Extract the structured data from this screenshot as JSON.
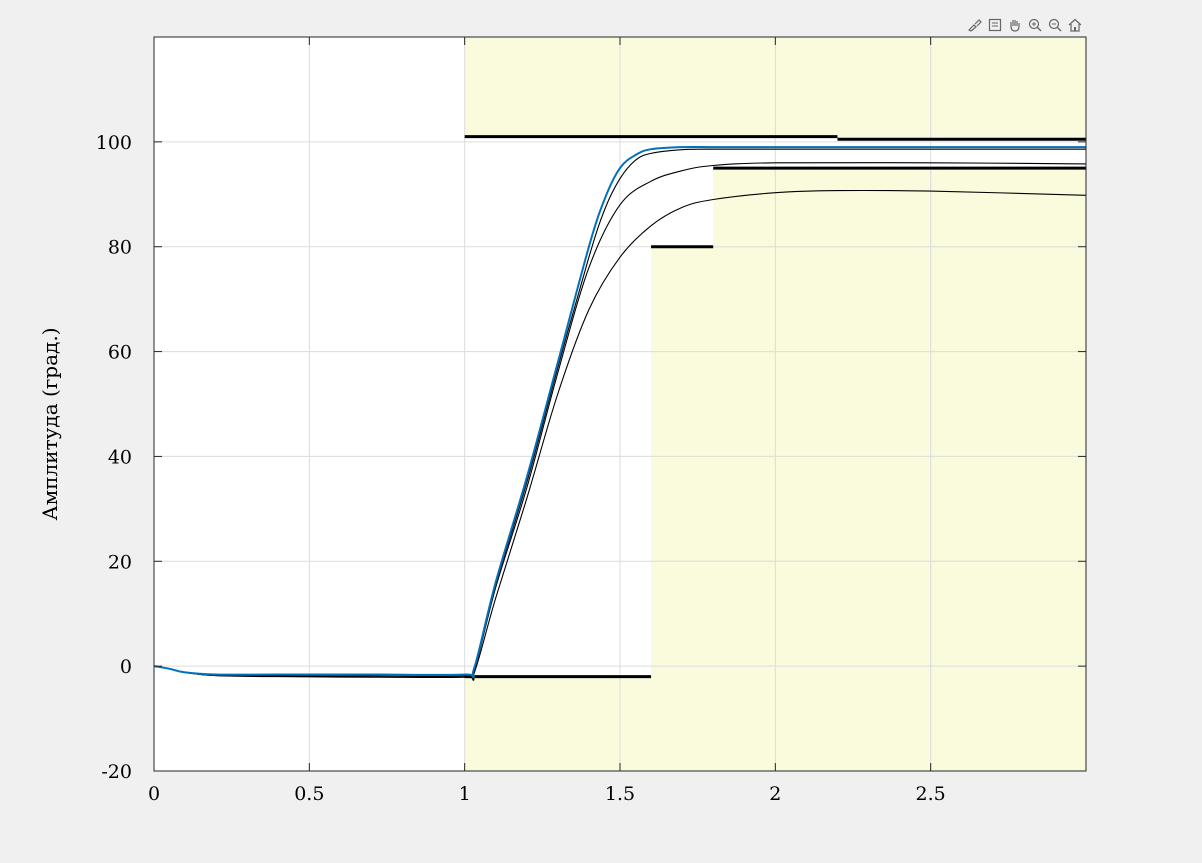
{
  "toolbar": {
    "icons": [
      "brush-icon",
      "legend-icon",
      "pan-icon",
      "zoom-in-icon",
      "zoom-out-icon",
      "home-icon"
    ]
  },
  "colors": {
    "background": "#f0f0f0",
    "axes_bg": "#ffffff",
    "bound_region": "#fafadc",
    "grid": "#dcdcdc",
    "bound_line": "#000000",
    "blue_series": "#0072bd",
    "black_series": "#000000"
  },
  "chart_data": {
    "type": "line",
    "title": "",
    "xlabel": "",
    "ylabel": "Амплитуда (град.)",
    "xlim": [
      0,
      3
    ],
    "ylim": [
      -20,
      120
    ],
    "xticks": [
      0,
      0.5,
      1,
      1.5,
      2,
      2.5
    ],
    "xtick_labels": [
      "0",
      "0.5",
      "1",
      "1.5",
      "2",
      "2.5"
    ],
    "yticks": [
      -20,
      0,
      20,
      40,
      60,
      80,
      100
    ],
    "ytick_labels": [
      "-20",
      "0",
      "20",
      "40",
      "60",
      "80",
      "100"
    ],
    "grid": true,
    "step_bounds": {
      "upper": [
        {
          "x": [
            1,
            2.2
          ],
          "y": 101
        },
        {
          "x": [
            2.2,
            3
          ],
          "y": 100.5
        }
      ],
      "lower": [
        {
          "x": [
            1,
            1.6
          ],
          "y": -2
        },
        {
          "x": [
            1.6,
            1.8
          ],
          "y": 80
        },
        {
          "x": [
            1.8,
            3
          ],
          "y": 95
        }
      ]
    },
    "series": [
      {
        "color": "#0072bd",
        "x": [
          0,
          0.05,
          0.1,
          0.2,
          0.4,
          0.7,
          1.0,
          1.03,
          1.1,
          1.2,
          1.3,
          1.4,
          1.45,
          1.5,
          1.55,
          1.6,
          1.7,
          1.8,
          2.0,
          2.5,
          3.0
        ],
        "y": [
          0,
          -0.5,
          -1.2,
          -1.6,
          -1.6,
          -1.6,
          -1.6,
          -0.5,
          16,
          36,
          58,
          80,
          89,
          95,
          97.5,
          98.6,
          99,
          99,
          99,
          99,
          99
        ]
      },
      {
        "color": "#000000",
        "x": [
          0,
          0.05,
          0.1,
          0.2,
          0.4,
          0.7,
          1.0,
          1.03,
          1.1,
          1.2,
          1.3,
          1.4,
          1.45,
          1.5,
          1.55,
          1.6,
          1.7,
          1.8,
          2.0,
          2.5,
          3.0
        ],
        "y": [
          0,
          -0.5,
          -1.2,
          -1.7,
          -1.7,
          -1.7,
          -1.7,
          -0.8,
          15.5,
          35,
          57,
          78,
          87,
          93,
          96.5,
          97.8,
          98.5,
          98.6,
          98.6,
          98.6,
          98.6
        ]
      },
      {
        "color": "#000000",
        "x": [
          0,
          0.05,
          0.1,
          0.2,
          0.4,
          0.7,
          1.0,
          1.03,
          1.1,
          1.2,
          1.3,
          1.4,
          1.5,
          1.6,
          1.7,
          1.8,
          2.0,
          2.5,
          3.0
        ],
        "y": [
          0,
          -0.5,
          -1.2,
          -1.8,
          -1.9,
          -1.9,
          -1.9,
          -1.0,
          15,
          34,
          56,
          76,
          88,
          92.5,
          94.5,
          95.5,
          96,
          96,
          95.8
        ]
      },
      {
        "color": "#000000",
        "x": [
          0,
          0.05,
          0.1,
          0.2,
          0.4,
          0.7,
          1.0,
          1.03,
          1.1,
          1.2,
          1.3,
          1.4,
          1.5,
          1.6,
          1.7,
          1.8,
          2.0,
          2.2,
          2.5,
          3.0
        ],
        "y": [
          0,
          -0.5,
          -1.2,
          -1.8,
          -2.0,
          -2.1,
          -2.1,
          -1.4,
          13,
          32,
          52,
          68,
          78,
          84,
          87.5,
          89,
          90.3,
          90.7,
          90.6,
          89.8
        ]
      }
    ]
  }
}
